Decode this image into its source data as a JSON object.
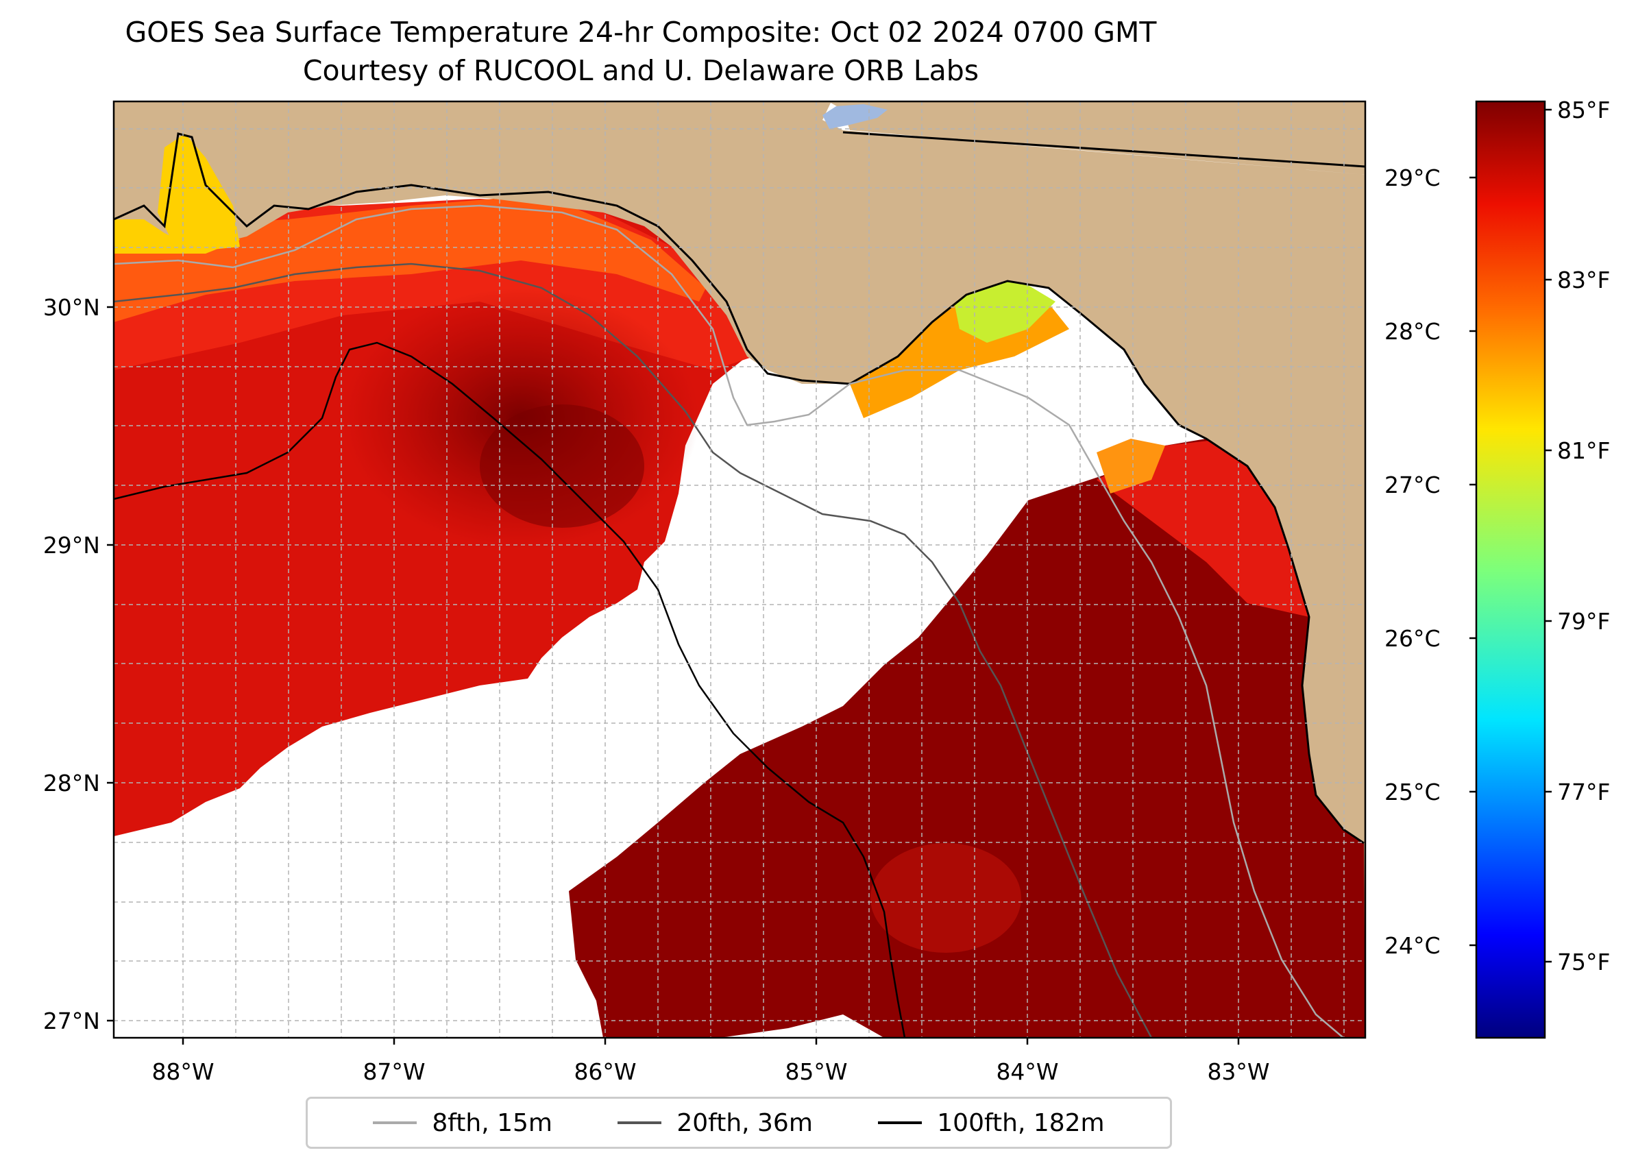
{
  "title": {
    "line1": "GOES Sea Surface Temperature 24-hr Composite: Oct 02 2024 0700 GMT",
    "line2": "Courtesy of RUCOOL and U. Delaware ORB Labs"
  },
  "axes": {
    "longitude_ticks": [
      "88°W",
      "87°W",
      "86°W",
      "85°W",
      "84°W",
      "83°W"
    ],
    "latitude_ticks": [
      "30°N",
      "29°N",
      "28°N",
      "27°N"
    ]
  },
  "colorbar": {
    "fahrenheit_ticks": [
      "85°F",
      "83°F",
      "81°F",
      "79°F",
      "77°F",
      "75°F"
    ],
    "celsius_ticks": [
      "29°C",
      "28°C",
      "27°C",
      "26°C",
      "25°C",
      "24°C"
    ],
    "colormap": "jet",
    "range_f": [
      74.0,
      85.2
    ]
  },
  "legend": {
    "items": [
      {
        "label": "8fth, 15m",
        "color": "#aaaaaa"
      },
      {
        "label": "20fth, 36m",
        "color": "#555555"
      },
      {
        "label": "100fth, 182m",
        "color": "#000000"
      }
    ]
  },
  "colors": {
    "land": "#d2b48c",
    "no_data": "#ffffff",
    "sst_warmest": "#8b0000",
    "sst_warm": "#e61a0d",
    "sst_mid": "#ff8c00",
    "sst_cool": "#f0e800",
    "sst_coolest": "#c8f028",
    "lake": "#a0b9e0"
  }
}
